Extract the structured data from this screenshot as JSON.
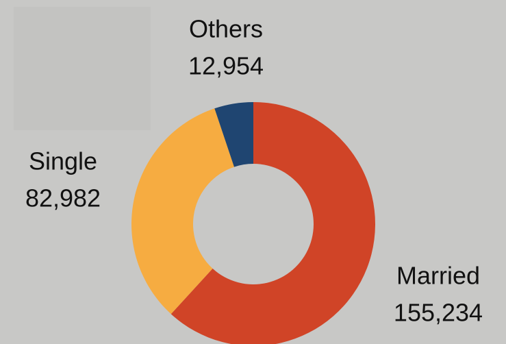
{
  "chart_data": {
    "type": "donut",
    "categories": [
      "Married",
      "Single",
      "Others"
    ],
    "values": [
      155234,
      82982,
      12954
    ],
    "value_labels": [
      "155,234",
      "82,982",
      "12,954"
    ],
    "colors": [
      "#d04427",
      "#f6ac41",
      "#1f4571"
    ]
  }
}
